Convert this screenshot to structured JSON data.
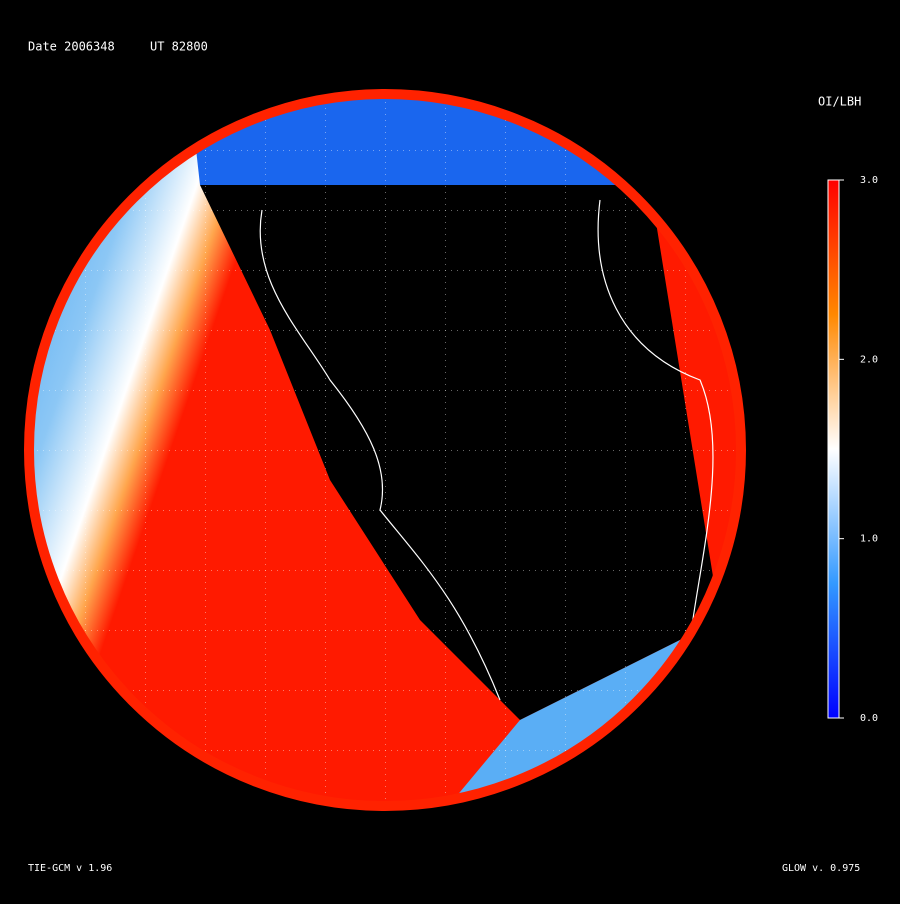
{
  "header": {
    "date": "Date 2006348",
    "ut": "UT 82800"
  },
  "colorbar": {
    "title": "OI/LBH",
    "range": [
      0,
      3
    ],
    "ticks": [
      {
        "value": 3,
        "label": "3.0"
      },
      {
        "value": 2,
        "label": "2.0"
      },
      {
        "value": 1,
        "label": "1.0"
      },
      {
        "value": 0,
        "label": "0.0"
      }
    ],
    "colors": [
      "#0000ff",
      "#3399ff",
      "#ffffff",
      "#ff8800",
      "#ff0000"
    ]
  },
  "footer": {
    "left": "TIE-GCM v 1.96",
    "right": "GLOW v. 0.975"
  }
}
